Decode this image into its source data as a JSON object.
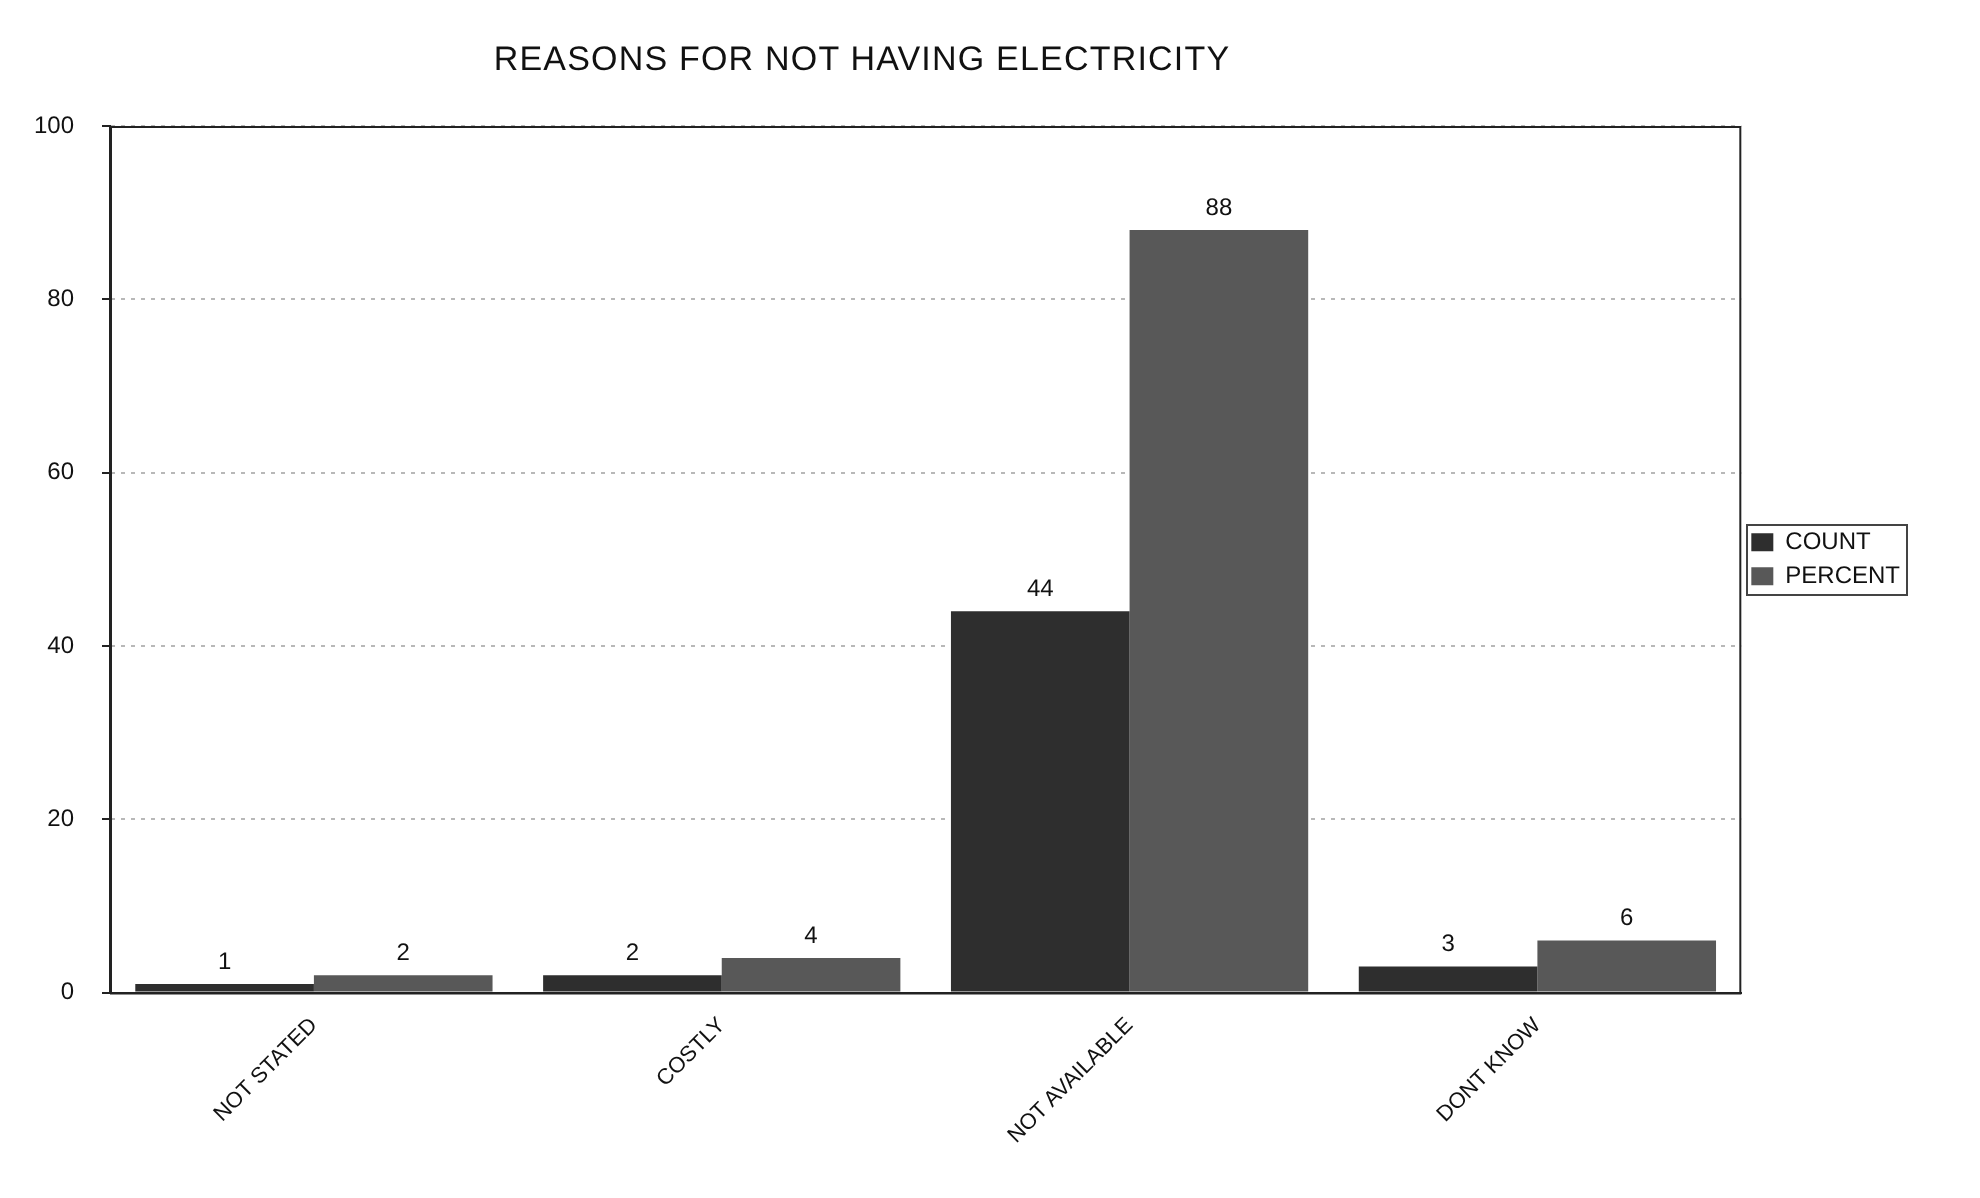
{
  "chart_data": {
    "type": "bar",
    "title": "REASONS FOR NOT HAVING ELECTRICITY",
    "categories": [
      "NOT STATED",
      "COSTLY",
      "NOT AVAILABLE",
      "DONT KNOW"
    ],
    "series": [
      {
        "name": "COUNT",
        "color": "#2e2e2e",
        "values": [
          1,
          2,
          44,
          3
        ]
      },
      {
        "name": "PERCENT",
        "color": "#585858",
        "values": [
          2,
          4,
          88,
          6
        ]
      }
    ],
    "ylim": [
      0,
      100
    ],
    "yticks": [
      0,
      20,
      40,
      60,
      80,
      100
    ],
    "grid": "y",
    "legend": "right",
    "data_labels": true
  }
}
